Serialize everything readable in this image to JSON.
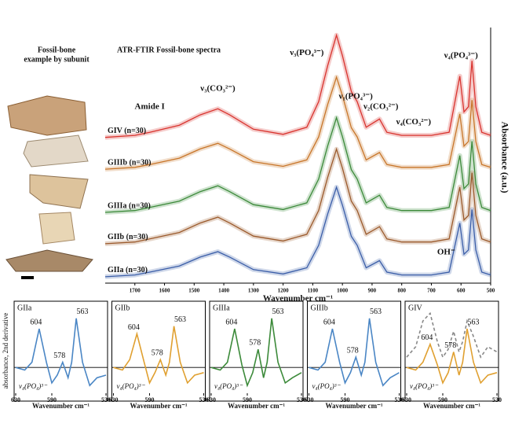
{
  "chart_data": [
    {
      "type": "line",
      "title": "ATR-FTIR Fossil-bone spectra",
      "side_title": [
        "Fossil-bone",
        "example by subunit"
      ],
      "xlabel": "Wavenumber cm⁻¹",
      "ylabel": "Absorbance (a.u.)",
      "xlim": [
        1800,
        500
      ],
      "ylim": [
        0,
        10
      ],
      "xticks": [
        1700,
        1600,
        1500,
        1400,
        1300,
        1200,
        1100,
        1000,
        900,
        800,
        700,
        600,
        500
      ],
      "x": [
        1800,
        1700,
        1650,
        1550,
        1480,
        1420,
        1380,
        1300,
        1200,
        1120,
        1080,
        1050,
        1020,
        1000,
        970,
        950,
        920,
        875,
        850,
        800,
        700,
        640,
        604,
        590,
        575,
        563,
        550,
        530,
        500
      ],
      "series": [
        {
          "name": "GIV (n=30)",
          "color": "#d9342f",
          "values": [
            5.7,
            5.78,
            5.9,
            6.18,
            6.58,
            6.82,
            6.58,
            6.02,
            5.82,
            6.1,
            7.1,
            8.5,
            9.7,
            8.9,
            7.5,
            7.1,
            6.1,
            6.42,
            5.9,
            5.78,
            5.78,
            5.9,
            8.1,
            6.7,
            6.9,
            8.7,
            6.9,
            5.9,
            5.78
          ]
        },
        {
          "name": "GIIIb (n=30)",
          "color": "#c8762a",
          "values": [
            4.46,
            4.53,
            4.64,
            4.89,
            5.25,
            5.47,
            5.25,
            4.75,
            4.57,
            4.82,
            5.72,
            6.98,
            8.06,
            7.34,
            6.08,
            5.72,
            4.82,
            5.11,
            4.64,
            4.53,
            4.53,
            4.64,
            6.62,
            5.36,
            5.54,
            7.16,
            5.54,
            4.64,
            4.53
          ]
        },
        {
          "name": "GIIIa (n=30)",
          "color": "#3c8a3a",
          "values": [
            2.77,
            2.84,
            2.96,
            3.21,
            3.58,
            3.81,
            3.58,
            3.07,
            2.88,
            3.14,
            4.07,
            5.36,
            6.47,
            5.73,
            4.44,
            4.07,
            3.14,
            3.44,
            2.96,
            2.84,
            2.84,
            2.96,
            4.99,
            3.7,
            3.88,
            5.55,
            3.88,
            2.96,
            2.84
          ]
        },
        {
          "name": "GIIb (n=30)",
          "color": "#9b5a2c",
          "values": [
            1.54,
            1.61,
            1.73,
            1.98,
            2.35,
            2.58,
            2.35,
            1.84,
            1.65,
            1.91,
            2.84,
            4.13,
            5.24,
            4.5,
            3.21,
            2.84,
            1.91,
            2.21,
            1.73,
            1.61,
            1.61,
            1.73,
            3.76,
            2.47,
            2.65,
            4.32,
            2.65,
            1.73,
            1.61
          ]
        },
        {
          "name": "GIIa (n=30)",
          "color": "#3b5ea8",
          "values": [
            0.25,
            0.32,
            0.43,
            0.67,
            1.02,
            1.23,
            1.02,
            0.53,
            0.36,
            0.6,
            1.48,
            2.7,
            3.75,
            3.05,
            1.83,
            1.48,
            0.6,
            0.88,
            0.43,
            0.32,
            0.32,
            0.43,
            2.35,
            1.13,
            1.3,
            2.88,
            1.3,
            0.43,
            0.32
          ]
        }
      ],
      "annotations": [
        {
          "text": "Amide I",
          "x": 1650,
          "y": 6.9
        },
        {
          "text": "ν₃(CO₃²⁻)",
          "x": 1420,
          "y": 7.6
        },
        {
          "text": "ν₃(PO₄³⁻)",
          "x": 1120,
          "y": 9.0
        },
        {
          "text": "ν₁(PO₄³⁻)",
          "x": 955,
          "y": 7.3
        },
        {
          "text": "ν₂(CO₃²⁻)",
          "x": 870,
          "y": 6.9
        },
        {
          "text": "ν₄(CO₃²⁻)",
          "x": 760,
          "y": 6.3
        },
        {
          "text": "ν₄(PO₄³⁻)",
          "x": 600,
          "y": 8.9
        },
        {
          "text": "OH⁻",
          "x": 650,
          "y": 1.2
        }
      ]
    },
    {
      "type": "line",
      "title": "GIIa",
      "ylabel": "absorbance, 2nd derivative",
      "band_label": "ν₄(PO₄)³⁻",
      "xlabel": "Wavenumber cm⁻¹",
      "xlim": [
        630,
        530
      ],
      "ylim": [
        -0.5,
        1.1
      ],
      "xticks": [
        630,
        590,
        530
      ],
      "peaks": [
        604,
        578,
        563
      ],
      "x": [
        630,
        620,
        612,
        604,
        596,
        590,
        584,
        578,
        572,
        568,
        563,
        556,
        548,
        540,
        530
      ],
      "series": [
        {
          "color": "#4a86c5",
          "values": [
            0,
            -0.05,
            0.1,
            0.75,
            0.1,
            -0.3,
            -0.15,
            0.1,
            -0.2,
            0.1,
            0.95,
            0.1,
            -0.35,
            -0.2,
            -0.15
          ]
        }
      ]
    },
    {
      "type": "line",
      "title": "GIIb",
      "band_label": "ν₄(PO₄)³⁻",
      "xlabel": "Wavenumber cm⁻¹",
      "xlim": [
        630,
        530
      ],
      "ylim": [
        -0.5,
        1.1
      ],
      "xticks": [
        630,
        590,
        530
      ],
      "peaks": [
        604,
        578,
        563
      ],
      "x": [
        630,
        620,
        612,
        604,
        596,
        590,
        584,
        578,
        572,
        568,
        563,
        556,
        548,
        540,
        530
      ],
      "series": [
        {
          "color": "#e0a030",
          "values": [
            0,
            -0.05,
            0.15,
            0.65,
            0.1,
            -0.3,
            -0.1,
            0.15,
            -0.15,
            0.1,
            0.8,
            0.1,
            -0.3,
            -0.15,
            -0.1
          ]
        }
      ]
    },
    {
      "type": "line",
      "title": "GIIIa",
      "band_label": "ν₄(PO₄)³⁻",
      "xlabel": "Wavenumber cm⁻¹",
      "xlim": [
        630,
        530
      ],
      "ylim": [
        -0.5,
        1.1
      ],
      "xticks": [
        630,
        590,
        530
      ],
      "peaks": [
        604,
        578,
        563
      ],
      "x": [
        630,
        620,
        612,
        604,
        596,
        590,
        584,
        578,
        572,
        568,
        563,
        556,
        548,
        540,
        530
      ],
      "series": [
        {
          "color": "#3c8a3a",
          "values": [
            0,
            -0.05,
            0.1,
            0.75,
            0.05,
            -0.35,
            -0.1,
            0.35,
            -0.2,
            0.1,
            0.95,
            0.1,
            -0.3,
            -0.2,
            -0.1
          ]
        }
      ]
    },
    {
      "type": "line",
      "title": "GIIIb",
      "band_label": "ν₄(PO₄)³⁻",
      "xlabel": "Wavenumber cm⁻¹",
      "xlim": [
        630,
        530
      ],
      "ylim": [
        -0.5,
        1.1
      ],
      "xticks": [
        630,
        590,
        530
      ],
      "peaks": [
        604,
        578,
        563
      ],
      "x": [
        630,
        620,
        612,
        604,
        596,
        590,
        584,
        578,
        572,
        568,
        563,
        556,
        548,
        540,
        530
      ],
      "series": [
        {
          "color": "#4a86c5",
          "values": [
            0,
            -0.05,
            0.1,
            0.75,
            0.1,
            -0.3,
            -0.1,
            0.2,
            -0.15,
            0.1,
            0.95,
            0.1,
            -0.35,
            -0.2,
            -0.1
          ]
        }
      ]
    },
    {
      "type": "line",
      "title": "GIV",
      "band_label": "ν₄(PO₄)³⁻",
      "xlabel": "Wavenumber cm⁻¹",
      "xlim": [
        630,
        530
      ],
      "ylim": [
        -0.5,
        1.1
      ],
      "xticks": [
        630,
        590,
        530
      ],
      "peaks": [
        604,
        578,
        563
      ],
      "x": [
        630,
        620,
        612,
        604,
        596,
        590,
        584,
        578,
        572,
        568,
        563,
        556,
        548,
        540,
        530
      ],
      "series": [
        {
          "color": "#e0a030",
          "values": [
            0,
            -0.05,
            0.1,
            0.45,
            0.05,
            -0.3,
            -0.1,
            0.3,
            -0.15,
            0.1,
            0.75,
            0.1,
            -0.3,
            -0.15,
            -0.1
          ]
        },
        {
          "color": "#888888",
          "style": "dashed",
          "values": [
            0.2,
            0.4,
            0.9,
            1.05,
            0.5,
            0.2,
            0.35,
            0.7,
            0.3,
            0.5,
            0.9,
            0.6,
            0.2,
            0.4,
            0.3
          ]
        }
      ]
    }
  ]
}
